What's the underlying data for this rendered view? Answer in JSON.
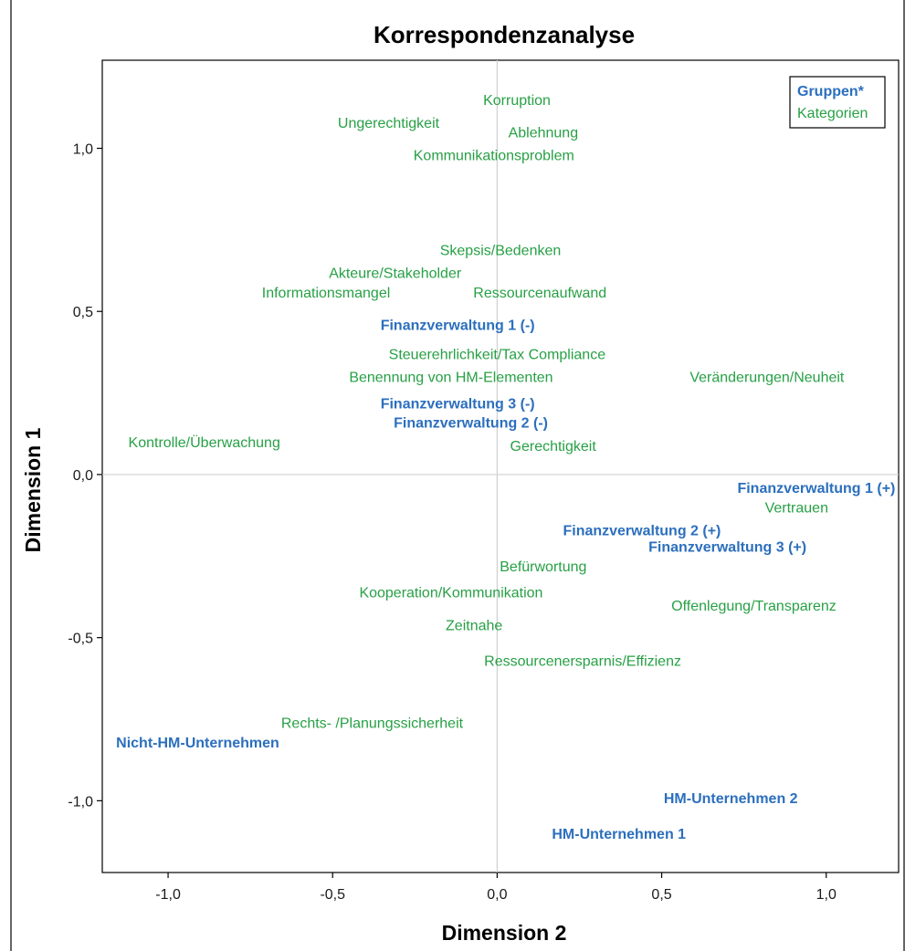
{
  "chart_data": {
    "type": "scatter",
    "title": "Korrespondenzanalyse",
    "xlabel": "Dimension 2",
    "ylabel": "Dimension 1",
    "xlim": [
      -1.2,
      1.22
    ],
    "ylim": [
      -1.22,
      1.27
    ],
    "xticks": [
      -1.0,
      -0.5,
      0.0,
      0.5,
      1.0
    ],
    "yticks": [
      -1.0,
      -0.5,
      0.0,
      0.5,
      1.0
    ],
    "xtick_labels": [
      "-1,0",
      "-0,5",
      "0,0",
      "0,5",
      "1,0"
    ],
    "ytick_labels": [
      "-1,0",
      "-0,5",
      "0,0",
      "0,5",
      "1,0"
    ],
    "reference_lines": {
      "x": 0.0,
      "y": 0.0
    },
    "grid": false,
    "legend_position": "top-right",
    "colors": {
      "gruppen": "#2b6fbd",
      "kategorien": "#27a045",
      "reference_line": "#d0d0d0"
    },
    "series": [
      {
        "name": "Gruppen*",
        "points": [
          {
            "label": "Finanzverwaltung 1 (-)",
            "x": -0.12,
            "y": 0.46
          },
          {
            "label": "Finanzverwaltung 3 (-)",
            "x": -0.12,
            "y": 0.22
          },
          {
            "label": "Finanzverwaltung 2 (-)",
            "x": -0.08,
            "y": 0.16
          },
          {
            "label": "Finanzverwaltung 1 (+)",
            "x": 0.97,
            "y": -0.04
          },
          {
            "label": "Finanzverwaltung 2 (+)",
            "x": 0.44,
            "y": -0.17
          },
          {
            "label": "Finanzverwaltung 3 (+)",
            "x": 0.7,
            "y": -0.22
          },
          {
            "label": "Nicht-HM-Unternehmen",
            "x": -0.91,
            "y": -0.82
          },
          {
            "label": "HM-Unternehmen 2",
            "x": 0.71,
            "y": -0.99
          },
          {
            "label": "HM-Unternehmen 1",
            "x": 0.37,
            "y": -1.1
          }
        ]
      },
      {
        "name": "Kategorien",
        "points": [
          {
            "label": "Korruption",
            "x": 0.06,
            "y": 1.15
          },
          {
            "label": "Ungerechtigkeit",
            "x": -0.33,
            "y": 1.08
          },
          {
            "label": "Ablehnung",
            "x": 0.14,
            "y": 1.05
          },
          {
            "label": "Kommunikationsproblem",
            "x": -0.01,
            "y": 0.98
          },
          {
            "label": "Skepsis/Bedenken",
            "x": 0.01,
            "y": 0.69
          },
          {
            "label": "Akteure/Stakeholder",
            "x": -0.31,
            "y": 0.62
          },
          {
            "label": "Informationsmangel",
            "x": -0.52,
            "y": 0.56
          },
          {
            "label": "Ressourcenaufwand",
            "x": 0.13,
            "y": 0.56
          },
          {
            "label": "Steuerehrlichkeit/Tax Compliance",
            "x": 0.0,
            "y": 0.37
          },
          {
            "label": "Benennung von HM-Elementen",
            "x": -0.14,
            "y": 0.3
          },
          {
            "label": "Veränderungen/Neuheit",
            "x": 0.82,
            "y": 0.3
          },
          {
            "label": "Kontrolle/Überwachung",
            "x": -0.89,
            "y": 0.1
          },
          {
            "label": "Gerechtigkeit",
            "x": 0.17,
            "y": 0.09
          },
          {
            "label": "Vertrauen",
            "x": 0.91,
            "y": -0.1
          },
          {
            "label": "Befürwortung",
            "x": 0.14,
            "y": -0.28
          },
          {
            "label": "Kooperation/Kommunikation",
            "x": -0.14,
            "y": -0.36
          },
          {
            "label": "Offenlegung/Transparenz",
            "x": 0.78,
            "y": -0.4
          },
          {
            "label": "Zeitnahe",
            "x": -0.07,
            "y": -0.46
          },
          {
            "label": "Ressourcenersparnis/Effizienz",
            "x": 0.26,
            "y": -0.57
          },
          {
            "label": "Rechts- /Planungssicherheit",
            "x": -0.38,
            "y": -0.76
          }
        ]
      }
    ]
  }
}
